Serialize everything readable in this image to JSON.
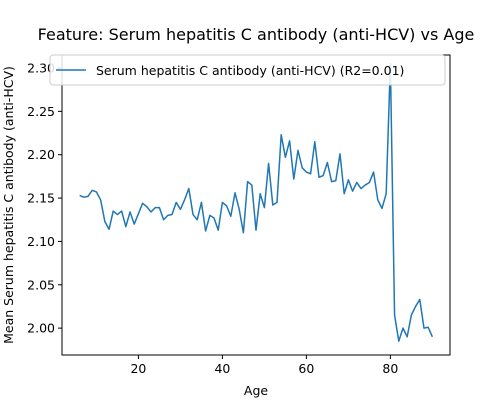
{
  "chart_data": {
    "type": "line",
    "title": "Feature: Serum hepatitis C antibody (anti-HCV) vs Age",
    "xlabel": "Age",
    "ylabel": "Mean Serum hepatitis C antibody (anti-HCV)",
    "xlim": [
      1.8,
      94.2
    ],
    "ylim": [
      1.969,
      2.315
    ],
    "xticks": [
      20,
      40,
      60,
      80
    ],
    "yticks": [
      2.0,
      2.05,
      2.1,
      2.15,
      2.2,
      2.25,
      2.3
    ],
    "ytick_labels": [
      "2.00",
      "2.05",
      "2.10",
      "2.15",
      "2.20",
      "2.25",
      "2.30"
    ],
    "grid": false,
    "legend_position": "upper-left",
    "line_color": "#1f77b4",
    "series": [
      {
        "name": "Serum hepatitis C antibody (anti-HCV) (R2=0.01)",
        "x": [
          6,
          7,
          8,
          9,
          10,
          11,
          12,
          13,
          14,
          15,
          16,
          17,
          18,
          19,
          20,
          21,
          22,
          23,
          24,
          25,
          26,
          27,
          28,
          29,
          30,
          31,
          32,
          33,
          34,
          35,
          36,
          37,
          38,
          39,
          40,
          41,
          42,
          43,
          44,
          45,
          46,
          47,
          48,
          49,
          50,
          51,
          52,
          53,
          54,
          55,
          56,
          57,
          58,
          59,
          60,
          61,
          62,
          63,
          64,
          65,
          66,
          67,
          68,
          69,
          70,
          71,
          72,
          73,
          74,
          75,
          76,
          77,
          78,
          79,
          80,
          81,
          82,
          83,
          84,
          85,
          86,
          87,
          88,
          89,
          90
        ],
        "y": [
          2.153,
          2.151,
          2.152,
          2.159,
          2.157,
          2.148,
          2.123,
          2.114,
          2.135,
          2.131,
          2.135,
          2.117,
          2.134,
          2.12,
          2.132,
          2.144,
          2.14,
          2.134,
          2.139,
          2.139,
          2.125,
          2.13,
          2.131,
          2.145,
          2.137,
          2.148,
          2.161,
          2.131,
          2.125,
          2.145,
          2.112,
          2.13,
          2.127,
          2.113,
          2.145,
          2.141,
          2.129,
          2.156,
          2.137,
          2.11,
          2.169,
          2.165,
          2.113,
          2.155,
          2.139,
          2.19,
          2.142,
          2.145,
          2.223,
          2.197,
          2.216,
          2.172,
          2.205,
          2.185,
          2.18,
          2.178,
          2.215,
          2.174,
          2.176,
          2.191,
          2.169,
          2.17,
          2.201,
          2.155,
          2.171,
          2.158,
          2.168,
          2.161,
          2.165,
          2.168,
          2.18,
          2.148,
          2.138,
          2.155,
          2.305,
          2.015,
          1.985,
          2.0,
          1.99,
          2.015,
          2.025,
          2.033,
          2.0,
          2.001,
          1.99
        ]
      }
    ]
  }
}
